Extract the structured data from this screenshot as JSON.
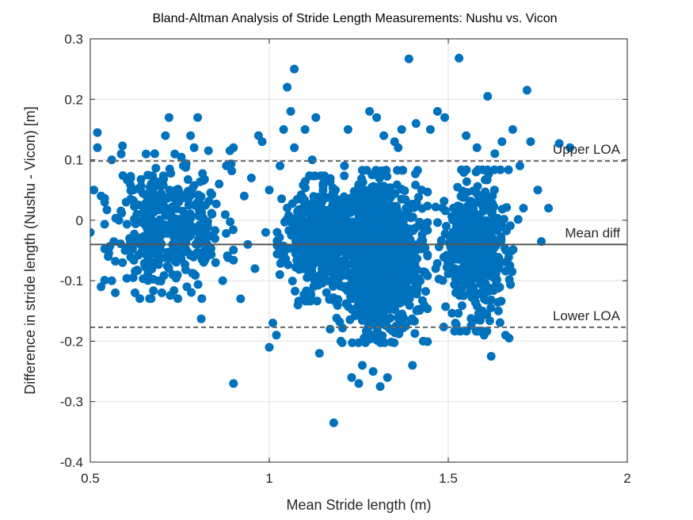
{
  "chart_data": {
    "type": "scatter",
    "title": "Bland-Altman Analysis of Stride Length Measurements: Nushu vs. Vicon",
    "xlabel": "Mean Stride length (m)",
    "ylabel": "Difference in stride length (Nushu - Vicon) [m]",
    "xlim": [
      0.5,
      2
    ],
    "ylim": [
      -0.4,
      0.3
    ],
    "xticks": [
      0.5,
      1,
      1.5,
      2
    ],
    "xtick_labels": [
      "0.5",
      "1",
      "1.5",
      "2"
    ],
    "yticks": [
      -0.4,
      -0.3,
      -0.2,
      -0.1,
      0,
      0.1,
      0.2,
      0.3
    ],
    "ytick_labels": [
      "-0.4",
      "-0.3",
      "-0.2",
      "-0.1",
      "0",
      "0.1",
      "0.2",
      "0.3"
    ],
    "grid": true,
    "marker_color": "#0072BD",
    "reference_lines": [
      {
        "label": "Upper LOA",
        "y": 0.098,
        "style": "dashed",
        "color": "#666666"
      },
      {
        "label": "Mean diff",
        "y": -0.04,
        "style": "solid",
        "color": "#555555"
      },
      {
        "label": "Lower LOA",
        "y": -0.177,
        "style": "dashed",
        "color": "#666666"
      }
    ],
    "points": [
      [
        0.5,
        -0.02
      ],
      [
        0.51,
        0.05
      ],
      [
        0.52,
        0.12
      ],
      [
        0.52,
        0.145
      ],
      [
        0.53,
        0.04
      ],
      [
        0.53,
        -0.11
      ],
      [
        0.54,
        0.03
      ],
      [
        0.55,
        -0.06
      ],
      [
        0.56,
        -0.1
      ],
      [
        0.57,
        -0.12
      ],
      [
        0.56,
        0.1
      ],
      [
        0.58,
        0.0
      ],
      [
        0.59,
        -0.07
      ],
      [
        0.59,
        0.123
      ],
      [
        0.6,
        0.03
      ],
      [
        0.61,
        -0.03
      ],
      [
        0.62,
        0.05
      ],
      [
        0.62,
        -0.095
      ],
      [
        0.63,
        0.01
      ],
      [
        0.64,
        -0.04
      ],
      [
        0.65,
        0.02
      ],
      [
        0.66,
        -0.08
      ],
      [
        0.67,
        0.06
      ],
      [
        0.68,
        0.11
      ],
      [
        0.69,
        -0.06
      ],
      [
        0.7,
        -0.12
      ],
      [
        0.71,
        0.14
      ],
      [
        0.71,
        0.02
      ],
      [
        0.72,
        0.17
      ],
      [
        0.73,
        -0.09
      ],
      [
        0.74,
        0.05
      ],
      [
        0.75,
        -0.02
      ],
      [
        0.76,
        0.09
      ],
      [
        0.77,
        -0.11
      ],
      [
        0.78,
        0.14
      ],
      [
        0.79,
        0.12
      ],
      [
        0.8,
        0.17
      ],
      [
        0.8,
        0.03
      ],
      [
        0.81,
        -0.163
      ],
      [
        0.82,
        -0.05
      ],
      [
        0.83,
        0.115
      ],
      [
        0.84,
        0.01
      ],
      [
        0.85,
        -0.07
      ],
      [
        0.86,
        0.06
      ],
      [
        0.87,
        -0.1
      ],
      [
        0.88,
        0.09
      ],
      [
        0.89,
        0.115
      ],
      [
        0.9,
        0.12
      ],
      [
        0.9,
        -0.27
      ],
      [
        0.92,
        -0.13
      ],
      [
        0.93,
        0.04
      ],
      [
        0.94,
        -0.04
      ],
      [
        0.95,
        0.07
      ],
      [
        0.96,
        -0.08
      ],
      [
        0.97,
        0.14
      ],
      [
        0.98,
        0.13
      ],
      [
        0.99,
        -0.02
      ],
      [
        1.0,
        0.05
      ],
      [
        1.0,
        -0.21
      ],
      [
        1.01,
        -0.17
      ],
      [
        1.02,
        -0.19
      ],
      [
        1.03,
        0.09
      ],
      [
        1.04,
        0.15
      ],
      [
        1.05,
        0.22
      ],
      [
        1.06,
        0.18
      ],
      [
        1.07,
        0.12
      ],
      [
        1.07,
        0.25
      ],
      [
        1.08,
        -0.14
      ],
      [
        1.1,
        0.15
      ],
      [
        1.12,
        0.1
      ],
      [
        1.13,
        0.17
      ],
      [
        1.14,
        -0.22
      ],
      [
        1.15,
        0.06
      ],
      [
        1.17,
        -0.18
      ],
      [
        1.18,
        -0.335
      ],
      [
        1.2,
        -0.2
      ],
      [
        1.21,
        0.09
      ],
      [
        1.22,
        0.15
      ],
      [
        1.23,
        -0.26
      ],
      [
        1.25,
        -0.27
      ],
      [
        1.26,
        -0.24
      ],
      [
        1.28,
        0.18
      ],
      [
        1.29,
        -0.25
      ],
      [
        1.3,
        0.17
      ],
      [
        1.31,
        -0.275
      ],
      [
        1.32,
        0.14
      ],
      [
        1.33,
        -0.26
      ],
      [
        1.35,
        0.13
      ],
      [
        1.36,
        0.12
      ],
      [
        1.37,
        0.15
      ],
      [
        1.39,
        0.267
      ],
      [
        1.4,
        -0.24
      ],
      [
        1.41,
        0.16
      ],
      [
        1.43,
        -0.2
      ],
      [
        1.45,
        0.15
      ],
      [
        1.47,
        0.18
      ],
      [
        1.49,
        0.17
      ],
      [
        1.52,
        -0.17
      ],
      [
        1.53,
        0.268
      ],
      [
        1.55,
        0.14
      ],
      [
        1.57,
        -0.12
      ],
      [
        1.58,
        0.12
      ],
      [
        1.6,
        -0.19
      ],
      [
        1.61,
        0.205
      ],
      [
        1.62,
        -0.225
      ],
      [
        1.63,
        0.11
      ],
      [
        1.64,
        -0.15
      ],
      [
        1.65,
        0.13
      ],
      [
        1.66,
        -0.19
      ],
      [
        1.67,
        -0.195
      ],
      [
        1.68,
        0.15
      ],
      [
        1.7,
        0.09
      ],
      [
        1.71,
        0.02
      ],
      [
        1.72,
        0.215
      ],
      [
        1.73,
        0.13
      ],
      [
        1.75,
        0.05
      ],
      [
        1.76,
        -0.035
      ],
      [
        1.78,
        0.02
      ],
      [
        1.81,
        0.127
      ],
      [
        1.84,
        0.12
      ]
    ],
    "clusters": [
      {
        "cx": 0.72,
        "cy": -0.01,
        "sx": 0.075,
        "sy": 0.052,
        "n": 360,
        "seed": 11
      },
      {
        "cx": 1.13,
        "cy": -0.03,
        "sx": 0.045,
        "sy": 0.045,
        "n": 420,
        "seed": 23
      },
      {
        "cx": 1.31,
        "cy": -0.06,
        "sx": 0.055,
        "sy": 0.062,
        "n": 1000,
        "seed": 37
      },
      {
        "cx": 1.58,
        "cy": -0.05,
        "sx": 0.048,
        "sy": 0.058,
        "n": 480,
        "seed": 53
      }
    ]
  }
}
